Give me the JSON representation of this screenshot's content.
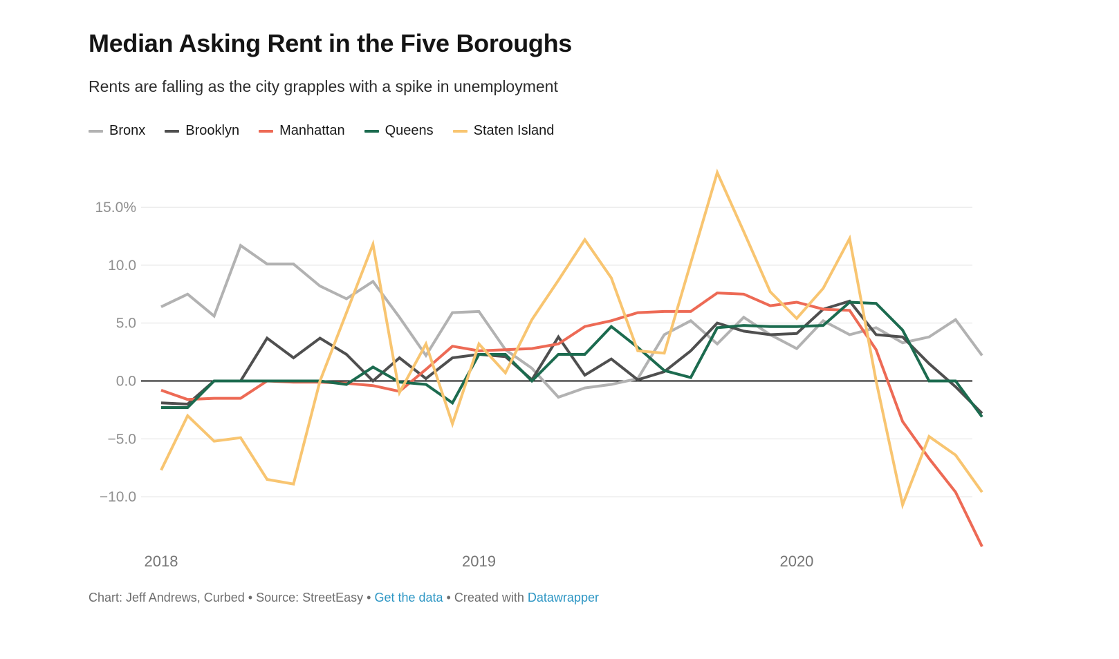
{
  "header": {
    "title": "Median Asking Rent in the Five Boroughs",
    "subtitle": "Rents are falling as the city grapples with a spike in unemployment"
  },
  "chart_data": {
    "type": "line",
    "title": "Median Asking Rent in the Five Boroughs",
    "subtitle": "Rents are falling as the city grapples with a spike in unemployment",
    "legend_position": "top",
    "grid": true,
    "x_axis": {
      "unit": "month",
      "n_points": 32,
      "ticks": [
        {
          "index": 0,
          "label": "2018"
        },
        {
          "index": 12,
          "label": "2019"
        },
        {
          "index": 24,
          "label": "2020"
        }
      ]
    },
    "y_axis": {
      "unit": "percent year-over-year",
      "ylim": [
        -15,
        18.5
      ],
      "ticks": [
        {
          "value": 15,
          "label": "15.0%"
        },
        {
          "value": 10,
          "label": "10.0"
        },
        {
          "value": 5,
          "label": "5.0"
        },
        {
          "value": 0,
          "label": "0.0"
        },
        {
          "value": -5,
          "label": "−5.0"
        },
        {
          "value": -10,
          "label": "−10.0"
        }
      ]
    },
    "series": [
      {
        "name": "Bronx",
        "color": "#b2b2b2",
        "values": [
          6.4,
          7.5,
          5.6,
          11.7,
          10.1,
          10.1,
          8.2,
          7.1,
          8.6,
          5.5,
          2.2,
          5.9,
          6.0,
          2.7,
          1.1,
          -1.4,
          -0.6,
          -0.3,
          0.2,
          4.0,
          5.2,
          3.2,
          5.5,
          4.0,
          2.8,
          5.2,
          4.0,
          4.6,
          3.3,
          3.8,
          5.3,
          2.2
        ]
      },
      {
        "name": "Brooklyn",
        "color": "#4f4f4f",
        "values": [
          -1.9,
          -2.0,
          0.0,
          0.0,
          3.7,
          2.0,
          3.7,
          2.3,
          0.0,
          2.0,
          0.2,
          2.0,
          2.3,
          2.1,
          0.1,
          3.8,
          0.5,
          1.9,
          0.1,
          0.8,
          2.6,
          5.0,
          4.3,
          4.0,
          4.1,
          6.2,
          6.9,
          4.0,
          3.8,
          1.5,
          -0.5,
          -2.8
        ]
      },
      {
        "name": "Manhattan",
        "color": "#ed6a55",
        "values": [
          -0.8,
          -1.6,
          -1.5,
          -1.5,
          0.0,
          -0.1,
          -0.1,
          -0.2,
          -0.4,
          -0.9,
          1.0,
          3.0,
          2.6,
          2.7,
          2.8,
          3.2,
          4.7,
          5.2,
          5.9,
          6.0,
          6.0,
          7.6,
          7.5,
          6.5,
          6.8,
          6.2,
          6.1,
          2.7,
          -3.5,
          -6.7,
          -9.6,
          -14.3
        ]
      },
      {
        "name": "Queens",
        "color": "#1c6b4f",
        "values": [
          -2.3,
          -2.3,
          0.0,
          0.0,
          0.0,
          0.0,
          0.0,
          -0.3,
          1.2,
          -0.1,
          -0.3,
          -1.9,
          2.3,
          2.3,
          0.0,
          2.3,
          2.3,
          4.7,
          2.9,
          0.9,
          0.3,
          4.6,
          4.8,
          4.7,
          4.7,
          4.8,
          6.8,
          6.7,
          4.4,
          0.0,
          0.0,
          -3.1
        ]
      },
      {
        "name": "Staten Island",
        "color": "#f8c571",
        "values": [
          -7.7,
          -3.0,
          -5.2,
          -4.9,
          -8.5,
          -8.9,
          0.0,
          5.9,
          11.8,
          -1.0,
          3.2,
          -3.7,
          3.2,
          0.7,
          5.3,
          8.7,
          12.2,
          8.9,
          2.6,
          2.4,
          10.2,
          18.0,
          12.9,
          7.7,
          5.4,
          8.0,
          12.3,
          0.0,
          -10.7,
          -4.8,
          -6.4,
          -9.6
        ]
      }
    ]
  },
  "footer": {
    "link_color": "#2d96c4",
    "segments": [
      {
        "text": "Chart: Jeff Andrews, Curbed • Source: StreetEasy • ",
        "link": false
      },
      {
        "text": "Get the data",
        "link": true,
        "name": "get-the-data-link"
      },
      {
        "text": " • Created with ",
        "link": false
      },
      {
        "text": "Datawrapper",
        "link": true,
        "name": "datawrapper-link"
      }
    ]
  }
}
